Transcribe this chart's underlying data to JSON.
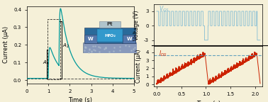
{
  "bg_color": "#f5f0d8",
  "left_plot": {
    "xlim": [
      0,
      5
    ],
    "ylim": [
      -0.02,
      0.42
    ],
    "yticks": [
      0.0,
      0.1,
      0.2,
      0.3,
      0.4
    ],
    "xticks": [
      0,
      1,
      2,
      3,
      4,
      5
    ],
    "xlabel": "Time (s)",
    "ylabel": "Current (μA)",
    "line_color": "#009999",
    "dashed_color": "#444444",
    "baseline": 0.01
  },
  "right_top": {
    "xlim": [
      -0.05,
      2.15
    ],
    "ylim": [
      -4.2,
      4.5
    ],
    "yticks": [
      -3,
      0,
      3
    ],
    "yticklabels": [
      "-3",
      "0",
      "3"
    ],
    "ylabel": "Voltage (V)",
    "line_color": "#7ab8d4",
    "label": "V_{GS}",
    "pulse_high": 3,
    "pulse_low": -3
  },
  "right_bottom": {
    "xlim": [
      -0.05,
      2.15
    ],
    "ylim": [
      -0.3,
      4.8
    ],
    "yticks": [
      0,
      1,
      2,
      3,
      4
    ],
    "yticklabels": [
      "0",
      "1",
      "2",
      "3",
      "4"
    ],
    "xticks": [
      0.0,
      0.5,
      1.0,
      1.5,
      2.0
    ],
    "xticklabels": [
      "0.0",
      "0.5",
      "1.0",
      "1.5",
      "2.0"
    ],
    "xlabel": "Time (s)",
    "ylabel": "Current (μA)",
    "line_color": "#cc2200",
    "dashed_color": "#5599bb",
    "threshold": 3.6,
    "label": "I_{DS}"
  },
  "inset": {
    "pt_color": "#b0c4cc",
    "hfo2_color": "#2a6a9a",
    "wo3_color": "#4477aa",
    "w_color": "#5577aa",
    "pt_label": "Pt",
    "hfo2_label": "HfO₂",
    "w_label": "W"
  }
}
